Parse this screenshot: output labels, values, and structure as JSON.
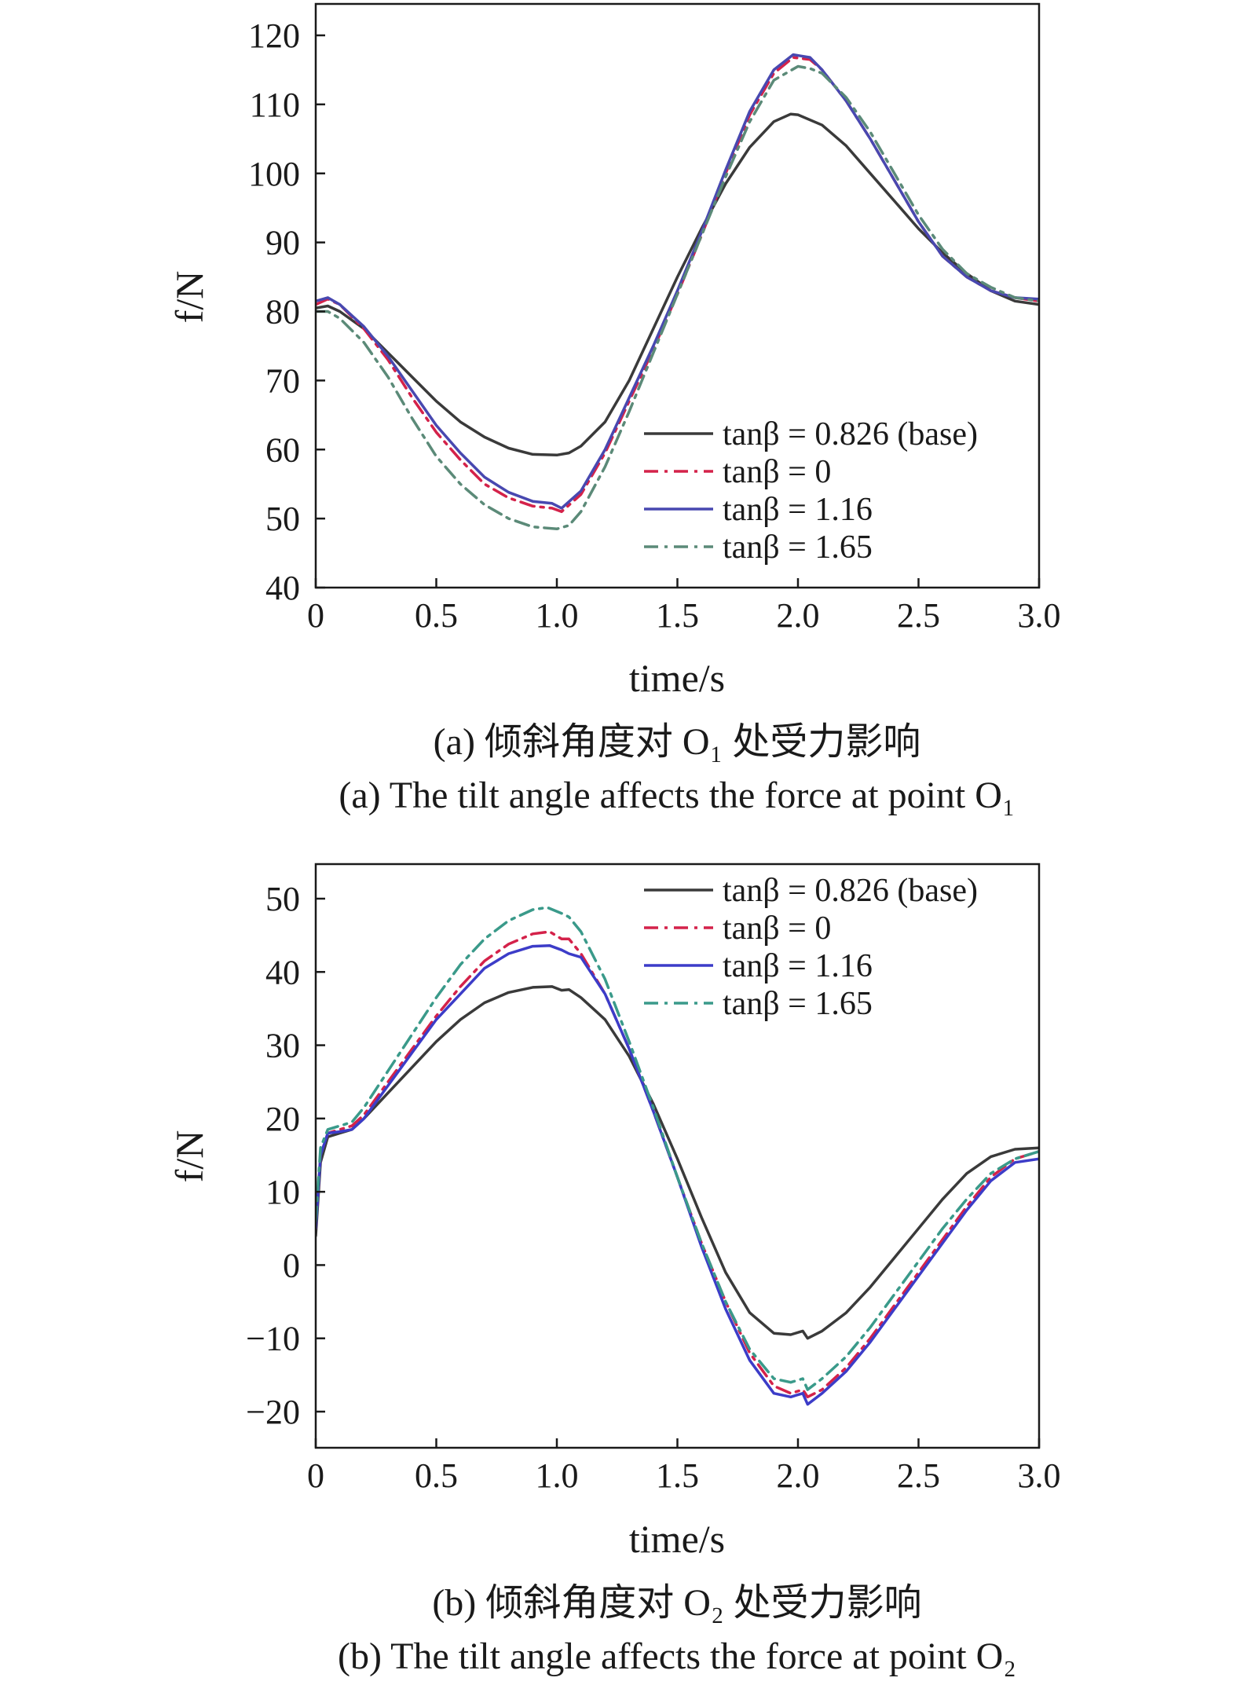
{
  "chart_data": [
    {
      "type": "line",
      "xlabel": "time/s",
      "ylabel": "f/N",
      "xlim": [
        0,
        3.0
      ],
      "ylim": [
        40,
        125
      ],
      "xticks": [
        "0",
        "0.5",
        "1.0",
        "1.5",
        "2.0",
        "2.5",
        "3.0"
      ],
      "yticks": [
        "40",
        "50",
        "60",
        "70",
        "80",
        "90",
        "100",
        "110",
        "120"
      ],
      "legend_position": "lower-right",
      "caption_cn": "(a) 倾斜角度对 O₁ 处受力影响",
      "caption_en": "(a) The tilt angle affects the force at point O₁",
      "series": [
        {
          "name": "tanβ = 0.826 (base)",
          "color": "#3a3a3a",
          "dash": "solid",
          "x": [
            0,
            0.05,
            0.1,
            0.2,
            0.3,
            0.4,
            0.5,
            0.6,
            0.7,
            0.8,
            0.9,
            1.0,
            1.05,
            1.1,
            1.2,
            1.3,
            1.4,
            1.5,
            1.6,
            1.7,
            1.8,
            1.9,
            1.97,
            2.0,
            2.1,
            2.2,
            2.3,
            2.4,
            2.5,
            2.6,
            2.7,
            2.8,
            2.9,
            3.0
          ],
          "y": [
            80.5,
            80.8,
            80,
            77.5,
            74,
            70.5,
            67,
            64,
            61.8,
            60.2,
            59.3,
            59.2,
            59.5,
            60.5,
            64,
            70,
            77.5,
            85,
            92,
            98.5,
            103.8,
            107.5,
            108.6,
            108.5,
            107,
            104,
            100,
            96,
            92,
            88.5,
            85.5,
            83,
            81.5,
            81
          ]
        },
        {
          "name": "tanβ = 0",
          "color": "#d4224a",
          "dash": "18 8 4 8",
          "x": [
            0,
            0.05,
            0.1,
            0.2,
            0.3,
            0.4,
            0.5,
            0.6,
            0.7,
            0.8,
            0.9,
            0.98,
            1.02,
            1.1,
            1.2,
            1.3,
            1.4,
            1.5,
            1.6,
            1.7,
            1.8,
            1.9,
            1.98,
            2.05,
            2.1,
            2.2,
            2.3,
            2.4,
            2.5,
            2.6,
            2.7,
            2.8,
            2.9,
            3.0
          ],
          "y": [
            81,
            81.8,
            81,
            77.5,
            73,
            67.5,
            62.5,
            58.5,
            55,
            53,
            51.8,
            51.5,
            51,
            53.5,
            59.5,
            67,
            74.5,
            82.5,
            91,
            100,
            108.5,
            114.5,
            116.8,
            116.5,
            115,
            110.5,
            105,
            99,
            93,
            88,
            85,
            83,
            82,
            81.5
          ]
        },
        {
          "name": "tanβ = 1.16",
          "color": "#4848b0",
          "dash": "solid",
          "x": [
            0,
            0.05,
            0.1,
            0.2,
            0.3,
            0.4,
            0.5,
            0.6,
            0.7,
            0.8,
            0.9,
            0.98,
            1.02,
            1.1,
            1.2,
            1.3,
            1.4,
            1.5,
            1.6,
            1.7,
            1.8,
            1.9,
            1.98,
            2.05,
            2.1,
            2.2,
            2.3,
            2.4,
            2.5,
            2.6,
            2.7,
            2.8,
            2.9,
            3.0
          ],
          "y": [
            81.5,
            82,
            81,
            77.8,
            73.5,
            68.5,
            63.5,
            59.5,
            56,
            53.8,
            52.5,
            52.2,
            51.5,
            54,
            60,
            67.5,
            75,
            83,
            91.5,
            100.5,
            109,
            115,
            117.2,
            116.8,
            115,
            110.5,
            105,
            99,
            93,
            88,
            85,
            83,
            82,
            81.8
          ]
        },
        {
          "name": "tanβ = 1.65",
          "color": "#5b8a78",
          "dash": "18 8 4 8",
          "x": [
            0,
            0.05,
            0.1,
            0.2,
            0.3,
            0.4,
            0.5,
            0.6,
            0.7,
            0.8,
            0.9,
            1.0,
            1.05,
            1.1,
            1.2,
            1.3,
            1.4,
            1.5,
            1.6,
            1.7,
            1.8,
            1.9,
            2.0,
            2.05,
            2.1,
            2.2,
            2.3,
            2.4,
            2.5,
            2.6,
            2.7,
            2.8,
            2.9,
            3.0
          ],
          "y": [
            80,
            80,
            79,
            75.5,
            70.5,
            64.5,
            59,
            55,
            52,
            50,
            48.8,
            48.5,
            49,
            51,
            57.5,
            65.5,
            74,
            82.5,
            91,
            99.5,
            107.5,
            113.5,
            115.5,
            115.2,
            114.5,
            111,
            106,
            100,
            94,
            89,
            85.5,
            83.5,
            82,
            81.5
          ]
        }
      ]
    },
    {
      "type": "line",
      "xlabel": "time/s",
      "ylabel": "f/N",
      "xlim": [
        0,
        3.0
      ],
      "ylim": [
        -25,
        55
      ],
      "xticks": [
        "0",
        "0.5",
        "1.0",
        "1.5",
        "2.0",
        "2.5",
        "3.0"
      ],
      "yticks": [
        "−20",
        "−10",
        "0",
        "10",
        "20",
        "30",
        "40",
        "50"
      ],
      "legend_position": "top-right",
      "caption_cn": "(b) 倾斜角度对 O₂ 处受力影响",
      "caption_en": "(b) The tilt angle affects the force at point O₂",
      "series": [
        {
          "name": "tanβ = 0.826 (base)",
          "color": "#3a3a3a",
          "dash": "solid",
          "x": [
            0,
            0.02,
            0.05,
            0.1,
            0.15,
            0.2,
            0.3,
            0.4,
            0.5,
            0.6,
            0.7,
            0.8,
            0.9,
            0.98,
            1.02,
            1.05,
            1.1,
            1.2,
            1.3,
            1.4,
            1.5,
            1.6,
            1.7,
            1.8,
            1.9,
            1.97,
            2.02,
            2.04,
            2.1,
            2.2,
            2.3,
            2.4,
            2.5,
            2.6,
            2.7,
            2.8,
            2.9,
            3.0
          ],
          "y": [
            4,
            14,
            17.5,
            18,
            18.5,
            20,
            23.5,
            27,
            30.5,
            33.5,
            35.8,
            37.2,
            37.9,
            38,
            37.5,
            37.6,
            36.5,
            33.5,
            28.5,
            22,
            14.5,
            6.5,
            -1,
            -6.5,
            -9.3,
            -9.5,
            -9,
            -10,
            -9,
            -6.5,
            -3,
            1,
            5,
            9,
            12.5,
            14.8,
            15.8,
            16
          ]
        },
        {
          "name": "tanβ = 0",
          "color": "#d4224a",
          "dash": "18 8 4 8",
          "x": [
            0,
            0.02,
            0.05,
            0.1,
            0.15,
            0.2,
            0.3,
            0.4,
            0.5,
            0.6,
            0.7,
            0.8,
            0.9,
            0.97,
            1.02,
            1.05,
            1.1,
            1.2,
            1.3,
            1.4,
            1.5,
            1.6,
            1.7,
            1.8,
            1.9,
            1.97,
            2.02,
            2.04,
            2.1,
            2.2,
            2.3,
            2.4,
            2.5,
            2.6,
            2.7,
            2.8,
            2.9,
            3.0
          ],
          "y": [
            5,
            15,
            18,
            18.5,
            19,
            20.5,
            25,
            29.5,
            34,
            38,
            41.5,
            43.8,
            45.2,
            45.5,
            44.5,
            44.5,
            42.5,
            37,
            29.5,
            21,
            12,
            3,
            -5,
            -12,
            -16.5,
            -17.5,
            -17,
            -18,
            -17,
            -14,
            -10,
            -5.5,
            -1,
            3.5,
            8,
            12,
            14.5,
            15.5
          ]
        },
        {
          "name": "tanβ = 1.16",
          "color": "#3c3cc8",
          "dash": "solid",
          "x": [
            0,
            0.02,
            0.05,
            0.1,
            0.15,
            0.2,
            0.3,
            0.4,
            0.5,
            0.6,
            0.7,
            0.8,
            0.9,
            0.97,
            1.02,
            1.05,
            1.1,
            1.2,
            1.3,
            1.4,
            1.5,
            1.6,
            1.7,
            1.8,
            1.9,
            1.97,
            2.02,
            2.04,
            2.1,
            2.2,
            2.3,
            2.4,
            2.5,
            2.6,
            2.7,
            2.8,
            2.9,
            3.0
          ],
          "y": [
            5,
            15,
            18,
            18.2,
            18.5,
            20,
            24.5,
            29,
            33.5,
            37,
            40.5,
            42.5,
            43.5,
            43.6,
            43,
            42.5,
            42,
            37,
            29.5,
            21,
            12,
            2.5,
            -6,
            -13,
            -17.5,
            -18,
            -17.5,
            -19,
            -17.5,
            -14.5,
            -10.5,
            -6,
            -1.5,
            3,
            7.5,
            11.5,
            14,
            14.5
          ]
        },
        {
          "name": "tanβ = 1.65",
          "color": "#3a9a8a",
          "dash": "18 8 4 8",
          "x": [
            0,
            0.02,
            0.05,
            0.1,
            0.15,
            0.2,
            0.3,
            0.4,
            0.5,
            0.6,
            0.7,
            0.8,
            0.9,
            0.96,
            1.02,
            1.05,
            1.1,
            1.2,
            1.3,
            1.4,
            1.5,
            1.6,
            1.7,
            1.8,
            1.9,
            1.97,
            2.02,
            2.04,
            2.1,
            2.2,
            2.3,
            2.4,
            2.5,
            2.6,
            2.7,
            2.8,
            2.9,
            3.0
          ],
          "y": [
            6,
            16,
            18.5,
            19,
            19.5,
            21.5,
            26.5,
            31.5,
            36.5,
            41,
            44.5,
            47,
            48.5,
            48.8,
            48,
            47.5,
            45.5,
            39,
            30.5,
            21.5,
            12,
            3,
            -5,
            -11.5,
            -15.5,
            -16,
            -15.5,
            -17,
            -15.5,
            -12.5,
            -8.5,
            -4,
            0.5,
            5,
            9,
            12.5,
            14.5,
            15.5
          ]
        }
      ]
    }
  ]
}
